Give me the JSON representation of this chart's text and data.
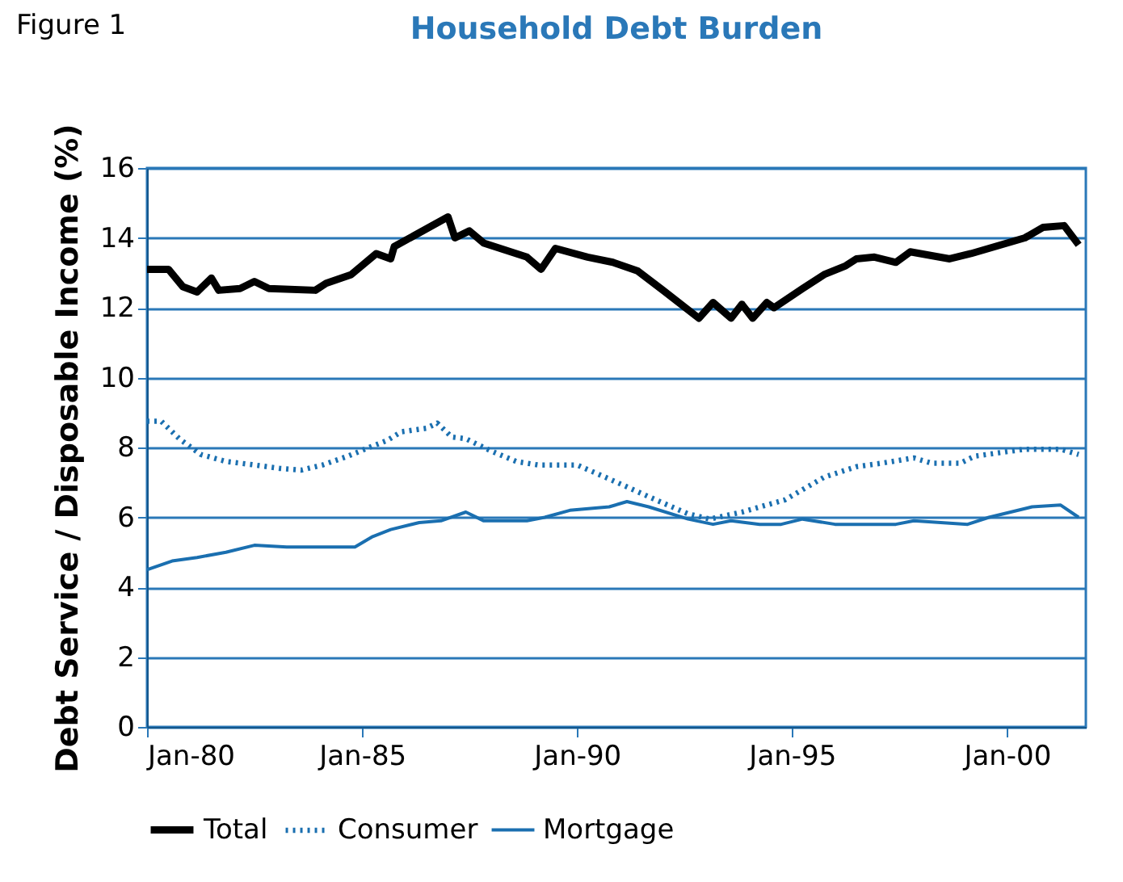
{
  "chart_data": {
    "type": "line",
    "title": "Household Debt Burden",
    "ylabel": "Debt Service / Disposable Income (%)",
    "annotations": [
      "Figure 1"
    ],
    "xlim": [
      "1980-01",
      "2001-11"
    ],
    "xticks": [
      {
        "value": "1980-01",
        "label": "Jan-80"
      },
      {
        "value": "1985-01",
        "label": "Jan-85"
      },
      {
        "value": "1990-01",
        "label": "Jan-90"
      },
      {
        "value": "1995-01",
        "label": "Jan-95"
      },
      {
        "value": "2000-01",
        "label": "Jan-00"
      }
    ],
    "ylim": [
      0,
      16
    ],
    "yticks": [
      0,
      2,
      4,
      6,
      8,
      10,
      12,
      14,
      16
    ],
    "grid": "y",
    "legend": "bottom",
    "series": [
      {
        "name": "Total",
        "color": "#000000",
        "line_style": "solid",
        "x": [
          "1980-01",
          "1980-07",
          "1980-11",
          "1981-03",
          "1981-07",
          "1981-09",
          "1982-03",
          "1982-07",
          "1982-11",
          "1983-12",
          "1984-03",
          "1984-10",
          "1985-05",
          "1985-09",
          "1985-10",
          "1987-01",
          "1987-03",
          "1987-07",
          "1987-11",
          "1988-11",
          "1989-03",
          "1989-07",
          "1990-04",
          "1990-11",
          "1991-06",
          "1992-01",
          "1992-11",
          "1993-03",
          "1993-08",
          "1993-11",
          "1994-02",
          "1994-06",
          "1994-08",
          "1995-04",
          "1995-10",
          "1996-04",
          "1996-07",
          "1996-12",
          "1997-06",
          "1997-10",
          "1998-09",
          "1999-03",
          "2000-06",
          "2000-11",
          "2001-05",
          "2001-09"
        ],
        "values": [
          13.1,
          13.1,
          12.6,
          12.45,
          12.85,
          12.5,
          12.55,
          12.75,
          12.55,
          12.5,
          12.7,
          12.95,
          13.55,
          13.4,
          13.75,
          14.6,
          14.0,
          14.2,
          13.85,
          13.45,
          13.1,
          13.7,
          13.45,
          13.3,
          13.05,
          12.5,
          11.7,
          12.15,
          11.7,
          12.1,
          11.7,
          12.15,
          12.0,
          12.55,
          12.95,
          13.2,
          13.4,
          13.45,
          13.3,
          13.6,
          13.4,
          13.55,
          14.0,
          14.3,
          14.35,
          13.8
        ]
      },
      {
        "name": "Consumer",
        "color": "#1a6fb0",
        "line_style": "dotted",
        "x": [
          "1980-01",
          "1980-05",
          "1980-10",
          "1981-04",
          "1981-11",
          "1982-07",
          "1983-02",
          "1983-08",
          "1984-02",
          "1984-09",
          "1985-03",
          "1985-08",
          "1985-12",
          "1986-07",
          "1986-10",
          "1987-02",
          "1987-06",
          "1988-01",
          "1988-08",
          "1989-02",
          "1990-01",
          "1990-10",
          "1991-11",
          "1992-08",
          "1993-02",
          "1993-11",
          "1994-11",
          "1995-10",
          "1996-07",
          "1997-02",
          "1997-08",
          "1997-11",
          "1998-04",
          "1998-12",
          "1999-04",
          "2000-06",
          "2001-04",
          "2001-09"
        ],
        "values": [
          8.75,
          8.75,
          8.25,
          7.8,
          7.6,
          7.5,
          7.4,
          7.35,
          7.5,
          7.75,
          8.0,
          8.2,
          8.45,
          8.55,
          8.7,
          8.3,
          8.25,
          7.9,
          7.6,
          7.5,
          7.5,
          7.1,
          6.5,
          6.1,
          5.95,
          6.15,
          6.5,
          7.15,
          7.45,
          7.55,
          7.65,
          7.7,
          7.55,
          7.55,
          7.75,
          7.95,
          7.95,
          7.8
        ]
      },
      {
        "name": "Mortgage",
        "color": "#1a6fb0",
        "line_style": "solid",
        "x": [
          "1980-01",
          "1980-08",
          "1981-03",
          "1981-11",
          "1982-07",
          "1983-04",
          "1984-11",
          "1985-04",
          "1985-09",
          "1986-05",
          "1986-11",
          "1987-06",
          "1987-11",
          "1988-11",
          "1989-04",
          "1989-11",
          "1990-10",
          "1991-03",
          "1991-09",
          "1992-08",
          "1993-03",
          "1993-08",
          "1994-04",
          "1994-10",
          "1995-04",
          "1996-01",
          "1997-06",
          "1997-11",
          "1999-02",
          "1999-08",
          "2000-02",
          "2000-08",
          "2001-04",
          "2001-09"
        ],
        "values": [
          4.5,
          4.75,
          4.85,
          5.0,
          5.2,
          5.15,
          5.15,
          5.45,
          5.65,
          5.85,
          5.9,
          6.15,
          5.9,
          5.9,
          6.0,
          6.2,
          6.3,
          6.45,
          6.3,
          5.95,
          5.8,
          5.9,
          5.8,
          5.8,
          5.95,
          5.8,
          5.8,
          5.9,
          5.8,
          6.0,
          6.15,
          6.3,
          6.35,
          6.0
        ]
      }
    ]
  }
}
